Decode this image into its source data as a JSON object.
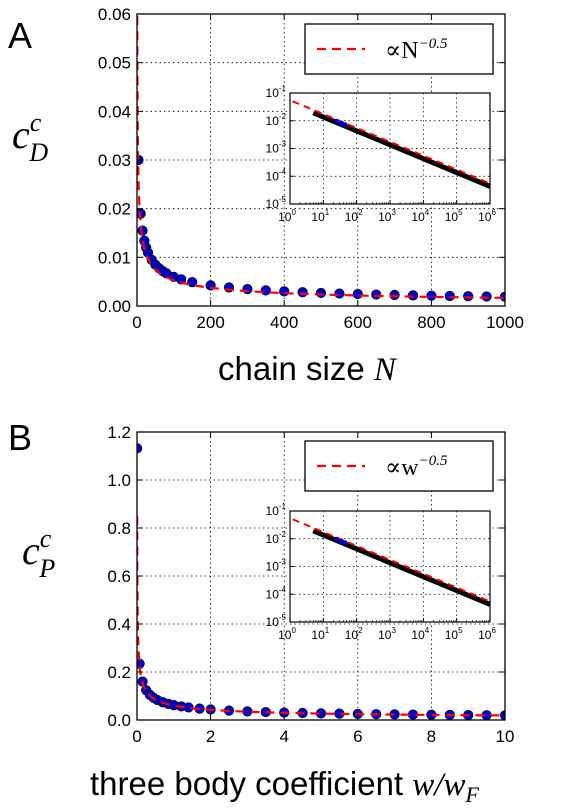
{
  "chart_data": [
    {
      "type": "scatter",
      "panel_label": "A",
      "xlabel_text": "chain size",
      "xlabel_math": "N",
      "ylabel_main": "c",
      "ylabel_sup": "c",
      "ylabel_sub": "D",
      "xlim": [
        0,
        1000
      ],
      "ylim": [
        0,
        0.06
      ],
      "xticks": [
        0,
        200,
        400,
        600,
        800,
        1000
      ],
      "xtick_labels": [
        "0",
        "200",
        "400",
        "600",
        "800",
        "1000"
      ],
      "yticks": [
        0,
        0.01,
        0.02,
        0.03,
        0.04,
        0.05,
        0.06
      ],
      "ytick_labels": [
        "0.00",
        "0.01",
        "0.02",
        "0.03",
        "0.04",
        "0.05",
        "0.06"
      ],
      "grid": true,
      "legend_position": "top-right",
      "series": [
        {
          "name": "∝N^{-0.5}",
          "kind": "fit-dashed",
          "color": "#ff0000",
          "coefficient": 0.053,
          "exponent": -0.5
        },
        {
          "kind": "markers",
          "color": "#0000cc",
          "x": [
            4,
            10,
            15,
            20,
            25,
            30,
            40,
            50,
            60,
            70,
            80,
            100,
            120,
            150,
            200,
            250,
            300,
            350,
            400,
            450,
            500,
            550,
            600,
            650,
            700,
            750,
            800,
            850,
            900,
            950,
            1000
          ],
          "coefficient": 0.06,
          "exponent": -0.5
        }
      ],
      "legend_text": "∝N",
      "legend_sup": "−0.5",
      "inset": {
        "scale": "log-log",
        "xlim": [
          1,
          1000000
        ],
        "ylim": [
          1e-05,
          0.1
        ],
        "xtick_exponents": [
          "0",
          "1",
          "2",
          "3",
          "4",
          "5",
          "6"
        ],
        "ytick_exponents": [
          "-1",
          "-2",
          "-3",
          "-4",
          "-5"
        ],
        "tick_base": "10"
      }
    },
    {
      "type": "scatter",
      "panel_label": "B",
      "xlabel_text": "three body coefficient",
      "xlabel_math": "w/w",
      "xlabel_math_sub": "F",
      "ylabel_main": "c",
      "ylabel_sup": "c",
      "ylabel_sub": "P",
      "xlim": [
        0,
        10
      ],
      "ylim": [
        0,
        1.2
      ],
      "xticks": [
        0,
        2,
        4,
        6,
        8,
        10
      ],
      "xtick_labels": [
        "0",
        "2",
        "4",
        "6",
        "8",
        "10"
      ],
      "yticks": [
        0,
        0.2,
        0.4,
        0.6,
        0.8,
        1.0,
        1.2
      ],
      "ytick_labels": [
        "0.0",
        "0.2",
        "0.4",
        "0.6",
        "0.8",
        "1.0",
        "1.2"
      ],
      "grid": true,
      "legend_position": "top-right",
      "series": [
        {
          "name": "∝w^{-0.5}",
          "kind": "fit-dashed",
          "color": "#ff0000",
          "coefficient": 0.06,
          "exponent": -0.5
        },
        {
          "kind": "markers",
          "color": "#0000cc",
          "x": [
            0.003,
            0.07,
            0.15,
            0.25,
            0.35,
            0.45,
            0.55,
            0.7,
            0.85,
            1.0,
            1.2,
            1.4,
            1.7,
            2.0,
            2.5,
            3,
            3.5,
            4,
            4.5,
            5,
            5.5,
            6,
            6.5,
            7,
            7.5,
            8,
            8.5,
            9,
            9.5,
            10
          ],
          "coefficient": 0.062,
          "exponent": -0.5
        }
      ],
      "legend_text": "∝w",
      "legend_sup": "−0.5",
      "inset": {
        "scale": "log-log",
        "xlim": [
          1,
          1000000
        ],
        "ylim": [
          1e-05,
          0.1
        ],
        "xtick_exponents": [
          "0",
          "1",
          "2",
          "3",
          "4",
          "5",
          "6"
        ],
        "ytick_exponents": [
          "-1",
          "-2",
          "-3",
          "-4",
          "-5"
        ],
        "tick_base": "10"
      }
    }
  ]
}
